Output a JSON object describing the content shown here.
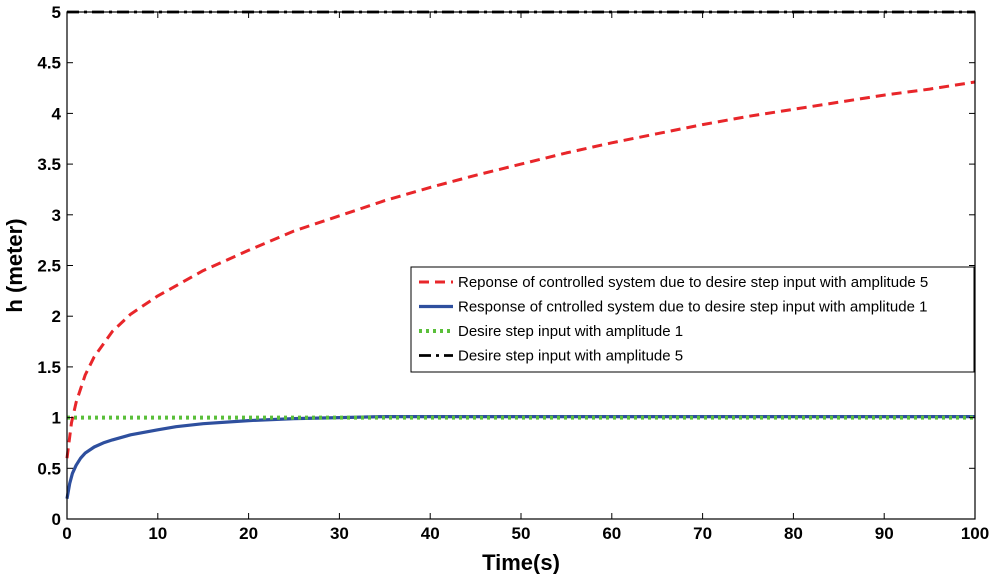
{
  "chart_data": {
    "type": "line",
    "title": "",
    "xlabel": "Time(s)",
    "ylabel": "h (meter)",
    "xlim": [
      0,
      100
    ],
    "ylim": [
      0,
      5
    ],
    "xticks": [
      "0",
      "10",
      "20",
      "30",
      "40",
      "50",
      "60",
      "70",
      "80",
      "90",
      "100"
    ],
    "yticks": [
      "0",
      "0.5",
      "1",
      "1.5",
      "2",
      "2.5",
      "3",
      "3.5",
      "4",
      "4.5",
      "5"
    ],
    "grid": false,
    "legend_position": "right",
    "series": [
      {
        "name": "Reponse of controlled system due to desire step input with amplitude 5",
        "color": "#e8262a",
        "style": "dashed",
        "x": [
          0,
          0.5,
          1,
          2,
          3,
          5,
          7,
          10,
          12,
          15,
          20,
          25,
          30,
          35,
          40,
          45,
          50,
          55,
          60,
          65,
          70,
          75,
          80,
          85,
          90,
          95,
          100
        ],
        "y": [
          0.6,
          0.95,
          1.15,
          1.42,
          1.6,
          1.85,
          2.02,
          2.2,
          2.3,
          2.45,
          2.65,
          2.84,
          2.99,
          3.14,
          3.27,
          3.39,
          3.5,
          3.61,
          3.71,
          3.8,
          3.89,
          3.97,
          4.04,
          4.11,
          4.18,
          4.24,
          4.31
        ]
      },
      {
        "name": "Response of cntrolled system due to desire step input with amplitude 1",
        "color": "#2e4f9e",
        "style": "solid",
        "x": [
          0,
          0.3,
          0.6,
          1,
          1.5,
          2,
          3,
          4,
          5,
          7,
          10,
          12,
          15,
          20,
          25,
          30,
          35,
          40,
          50,
          60,
          70,
          80,
          90,
          100
        ],
        "y": [
          0.2,
          0.35,
          0.45,
          0.53,
          0.6,
          0.65,
          0.71,
          0.75,
          0.78,
          0.83,
          0.88,
          0.91,
          0.94,
          0.97,
          0.99,
          1.0,
          1.01,
          1.01,
          1.01,
          1.01,
          1.01,
          1.01,
          1.01,
          1.01
        ]
      },
      {
        "name": "Desire step input with amplitude 1",
        "color": "#5abf3a",
        "style": "dotted",
        "x": [
          0,
          100
        ],
        "y": [
          1,
          1
        ]
      },
      {
        "name": "Desire step input with amplitude 5",
        "color": "#000000",
        "style": "dashdot",
        "x": [
          0,
          100
        ],
        "y": [
          5,
          5
        ]
      }
    ]
  }
}
